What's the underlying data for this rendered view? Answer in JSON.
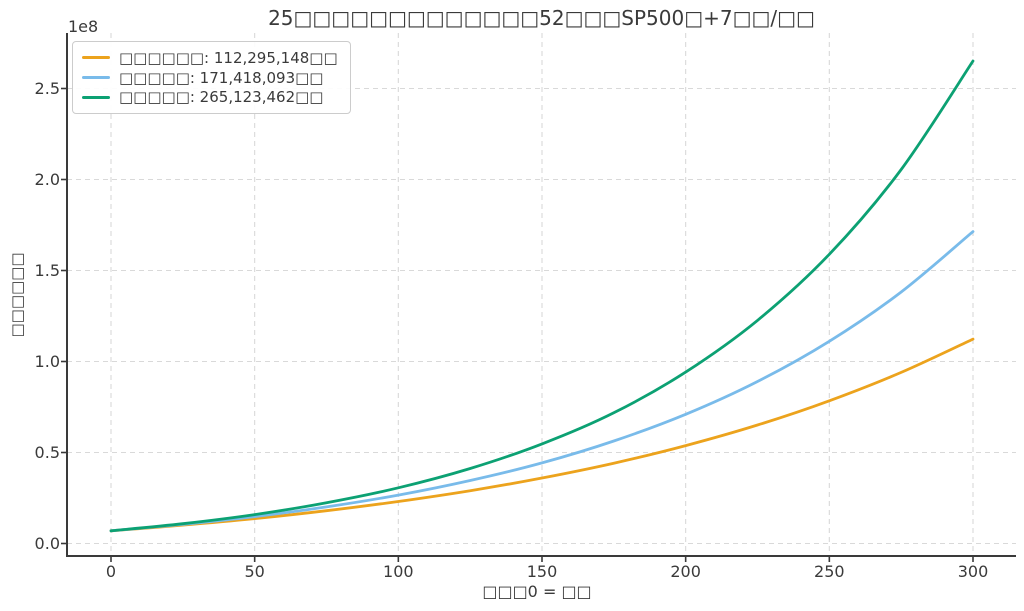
{
  "title": "25□□□□□□□□□□□□□52□□□SP500□+7□□/□□",
  "offset_label": "1e8",
  "x_axis": {
    "label": "□□□0 = □□",
    "ticks": [
      "0",
      "50",
      "100",
      "150",
      "200",
      "250",
      "300"
    ],
    "tick_values": [
      0,
      50,
      100,
      150,
      200,
      250,
      300
    ]
  },
  "y_axis": {
    "label": "□□□□□□",
    "ticks": [
      "0.0",
      "0.5",
      "1.0",
      "1.5",
      "2.0",
      "2.5"
    ],
    "tick_values": [
      0,
      0.5,
      1.0,
      1.5,
      2.0,
      2.5
    ],
    "scale_note": "1e8"
  },
  "legend": {
    "position": "upper left",
    "items": [
      {
        "label": "□□□□□□: 112,295,148□□",
        "color": "#ECA31D"
      },
      {
        "label": "□□□□□: 171,418,093□□",
        "color": "#79BBEA"
      },
      {
        "label": "□□□□□: 265,123,462□□",
        "color": "#0CA173"
      }
    ]
  },
  "chart_data": {
    "type": "line",
    "title": "25□□□□□□□□□□□□□52□□□SP500□+7□□/□□",
    "xlabel": "□□□0 = □□",
    "ylabel": "□□□□□□",
    "xlim": [
      -15,
      315
    ],
    "ylim_1e8": [
      -0.06,
      2.8
    ],
    "grid": true,
    "legend_position": "upper left",
    "x_months": [
      0,
      25,
      50,
      75,
      100,
      125,
      150,
      175,
      200,
      225,
      250,
      275,
      300
    ],
    "series": [
      {
        "name": "□□□□□□: 112,295,148□□",
        "color": "#ECA31D",
        "final_value_yen": 112295148,
        "values_1e8": [
          0.07,
          0.101,
          0.137,
          0.18,
          0.231,
          0.29,
          0.36,
          0.441,
          0.538,
          0.651,
          0.784,
          0.94,
          1.123
        ]
      },
      {
        "name": "□□□□□: 171,418,093□□",
        "color": "#79BBEA",
        "final_value_yen": 171418093,
        "values_1e8": [
          0.07,
          0.105,
          0.148,
          0.201,
          0.266,
          0.346,
          0.443,
          0.563,
          0.71,
          0.89,
          1.111,
          1.382,
          1.714
        ]
      },
      {
        "name": "□□□□□: 265,123,462□□",
        "color": "#0CA173",
        "final_value_yen": 265123462,
        "values_1e8": [
          0.07,
          0.109,
          0.159,
          0.224,
          0.306,
          0.412,
          0.547,
          0.718,
          0.942,
          1.226,
          1.589,
          2.055,
          2.651
        ]
      }
    ]
  },
  "style": {
    "grid_color": "#d9d9d9",
    "spine_color": "#3a3a3a",
    "text_color": "#3a3a3a",
    "background": "#ffffff"
  }
}
